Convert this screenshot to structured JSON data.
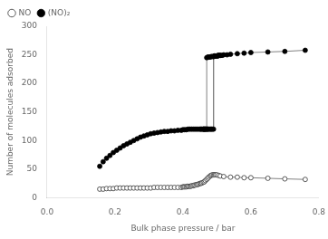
{
  "chart_data": {
    "type": "line",
    "xlabel": "Bulk phase pressure / bar",
    "ylabel": "Number of molecules adsorbed",
    "xlim": [
      0.0,
      0.8
    ],
    "ylim": [
      0,
      300
    ],
    "xticks": [
      {
        "value": 0.0,
        "label": "0.0"
      },
      0.2,
      0.4,
      0.6,
      0.8
    ],
    "yticks": [
      0,
      50,
      100,
      150,
      200,
      250,
      300
    ],
    "grid": false,
    "legend": "upper left",
    "series": [
      {
        "name": "NO",
        "color": "#808080",
        "marker": "open circle",
        "x": [
          0.155,
          0.165,
          0.175,
          0.185,
          0.195,
          0.205,
          0.215,
          0.225,
          0.235,
          0.245,
          0.255,
          0.265,
          0.275,
          0.285,
          0.295,
          0.305,
          0.315,
          0.325,
          0.335,
          0.345,
          0.355,
          0.365,
          0.375,
          0.385,
          0.395,
          0.4,
          0.403,
          0.406,
          0.41,
          0.413,
          0.416,
          0.42,
          0.423,
          0.426,
          0.43,
          0.433,
          0.436,
          0.44,
          0.443,
          0.446,
          0.45,
          0.453,
          0.456,
          0.46,
          0.463,
          0.466,
          0.47,
          0.473,
          0.476,
          0.48,
          0.483,
          0.486,
          0.49,
          0.493,
          0.496,
          0.5,
          0.505,
          0.51,
          0.52,
          0.54,
          0.56,
          0.58,
          0.6,
          0.65,
          0.7,
          0.76
        ],
        "values": [
          15,
          15,
          16,
          16,
          16,
          17,
          17,
          17,
          17,
          17,
          17,
          17,
          17,
          17,
          17,
          17,
          18,
          18,
          18,
          18,
          18,
          18,
          18,
          18,
          18,
          19,
          19,
          19,
          19,
          20,
          20,
          20,
          20,
          21,
          21,
          22,
          22,
          23,
          23,
          24,
          25,
          25,
          26,
          27,
          28,
          30,
          32,
          34,
          36,
          38,
          39,
          40,
          40,
          40,
          40,
          40,
          39,
          38,
          37,
          36,
          36,
          35,
          35,
          34,
          33,
          32
        ]
      },
      {
        "name": "(NO)₂",
        "color": "#808080",
        "marker": "filled circle",
        "x": [
          0.155,
          0.165,
          0.175,
          0.185,
          0.195,
          0.205,
          0.215,
          0.225,
          0.235,
          0.245,
          0.255,
          0.265,
          0.275,
          0.285,
          0.295,
          0.305,
          0.315,
          0.325,
          0.335,
          0.345,
          0.355,
          0.365,
          0.375,
          0.385,
          0.395,
          0.4,
          0.405,
          0.41,
          0.415,
          0.42,
          0.425,
          0.43,
          0.435,
          0.44,
          0.445,
          0.45,
          0.453,
          0.456,
          0.46,
          0.463,
          0.466,
          0.47,
          0.47,
          0.473,
          0.476,
          0.48,
          0.483,
          0.486,
          0.49,
          0.493,
          0.496,
          0.5,
          0.503,
          0.506,
          0.51,
          0.515,
          0.52,
          0.53,
          0.54,
          0.56,
          0.58,
          0.6,
          0.65,
          0.7,
          0.76,
          null,
          0.51,
          0.506,
          0.503,
          0.5,
          0.496,
          0.493,
          0.49,
          0.49,
          0.486,
          0.483,
          0.48,
          0.476,
          0.473,
          0.47,
          0.466,
          0.463,
          0.46
        ],
        "values": [
          55,
          63,
          69,
          74,
          79,
          83,
          87,
          91,
          94,
          97,
          100,
          103,
          106,
          108,
          110,
          112,
          113,
          114,
          115,
          116,
          116,
          117,
          117,
          118,
          118,
          119,
          119,
          119,
          120,
          120,
          120,
          120,
          120,
          120,
          120,
          120,
          120,
          120,
          120,
          120,
          120,
          120,
          245,
          246,
          246,
          246,
          247,
          247,
          247,
          248,
          248,
          248,
          248,
          249,
          249,
          249,
          250,
          250,
          251,
          252,
          253,
          254,
          255,
          256,
          258,
          null,
          249,
          249,
          249,
          248,
          248,
          248,
          247,
          120,
          120,
          120,
          120,
          120,
          120,
          120,
          120,
          120,
          120
        ]
      }
    ]
  }
}
